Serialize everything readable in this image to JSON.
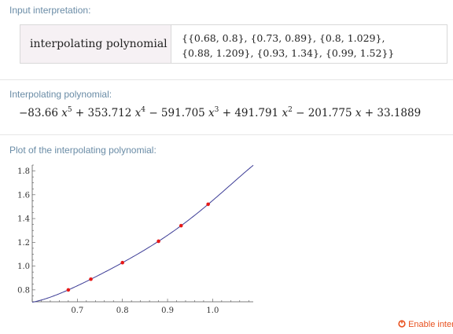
{
  "pods": {
    "input": {
      "title": "Input interpretation:",
      "label": "interpolating polynomial",
      "points_line1": "{{0.68, 0.8}, {0.73, 0.89}, {0.8, 1.029},",
      "points_line2": "{0.88, 1.209}, {0.93, 1.34}, {0.99, 1.52}}"
    },
    "result": {
      "title": "Interpolating polynomial:",
      "terms": {
        "t1_coef": "−83.66",
        "t1_exp": "5",
        "op2": "+",
        "t2_coef": "353.712",
        "t2_exp": "4",
        "op3": "−",
        "t3_coef": "591.705",
        "t3_exp": "3",
        "op4": "+",
        "t4_coef": "491.791",
        "t4_exp": "2",
        "op5": "−",
        "t5_coef": "201.775",
        "op6": "+",
        "t6_const": "33.1889",
        "var": "x"
      }
    },
    "plot": {
      "title": "Plot of the interpolating polynomial:"
    }
  },
  "footer": {
    "enable_icon": "interactivity-icon",
    "enable_label": "Enable inter"
  },
  "colors": {
    "curve": "#3c3c96",
    "points": "#e61919",
    "title": "#6a8ca6",
    "link": "#e8511f"
  },
  "chart_data": {
    "type": "line",
    "title": "Plot of the interpolating polynomial:",
    "xlim": [
      0.6,
      1.09
    ],
    "ylim": [
      0.7,
      1.85
    ],
    "x_ticks": [
      0.7,
      0.8,
      0.9,
      1.0
    ],
    "x_tick_labels": [
      "0.7",
      "0.8",
      "0.9",
      "1.0"
    ],
    "y_ticks": [
      0.8,
      1.0,
      1.2,
      1.4,
      1.6,
      1.8
    ],
    "y_tick_labels": [
      "0.8",
      "1.0",
      "1.2",
      "1.4",
      "1.6",
      "1.8"
    ],
    "coefficients": [
      -83.66,
      353.712,
      -591.705,
      491.791,
      -201.775,
      33.1889
    ],
    "curve_x_range": [
      0.6,
      1.09
    ],
    "points": [
      {
        "x": 0.68,
        "y": 0.8
      },
      {
        "x": 0.73,
        "y": 0.89
      },
      {
        "x": 0.8,
        "y": 1.029
      },
      {
        "x": 0.88,
        "y": 1.209
      },
      {
        "x": 0.93,
        "y": 1.34
      },
      {
        "x": 0.99,
        "y": 1.52
      }
    ],
    "xlabel": "",
    "ylabel": "",
    "grid": false
  }
}
